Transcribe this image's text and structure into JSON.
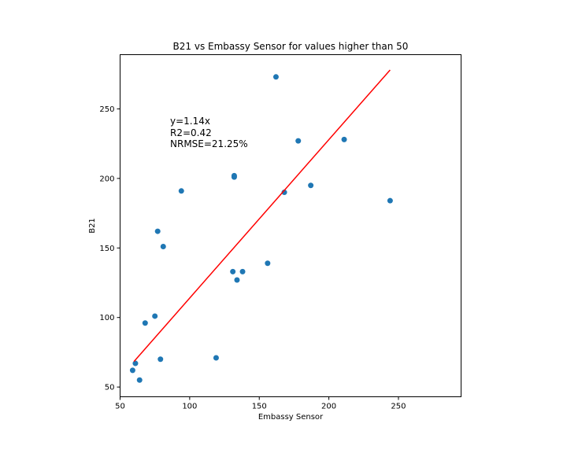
{
  "chart_data": {
    "type": "scatter",
    "title": "B21 vs Embassy Sensor for values higher than 50",
    "xlabel": "Embassy Sensor",
    "ylabel": "B21",
    "xlim": [
      50,
      295
    ],
    "ylim": [
      43,
      289
    ],
    "xticks": [
      50,
      100,
      150,
      200,
      250
    ],
    "yticks": [
      50,
      100,
      150,
      200,
      250
    ],
    "grid": false,
    "points": {
      "x": [
        59,
        61,
        64,
        68,
        75,
        77,
        79,
        81,
        94,
        119,
        131,
        132,
        132,
        134,
        138,
        156,
        162,
        168,
        178,
        187,
        211,
        244
      ],
      "y": [
        62,
        67,
        55,
        96,
        101,
        162,
        70,
        151,
        191,
        71,
        133,
        201,
        202,
        127,
        133,
        139,
        273,
        190,
        227,
        195,
        228,
        184
      ],
      "color": "#1f77b4"
    },
    "fit_line": {
      "x_start": 60,
      "x_end": 244,
      "slope": 1.14,
      "y_start": 68.4,
      "y_end": 278,
      "color": "#ff0000"
    },
    "annotation": [
      "y=1.14x",
      "R2=0.42",
      "NRMSE=21.25%"
    ]
  }
}
